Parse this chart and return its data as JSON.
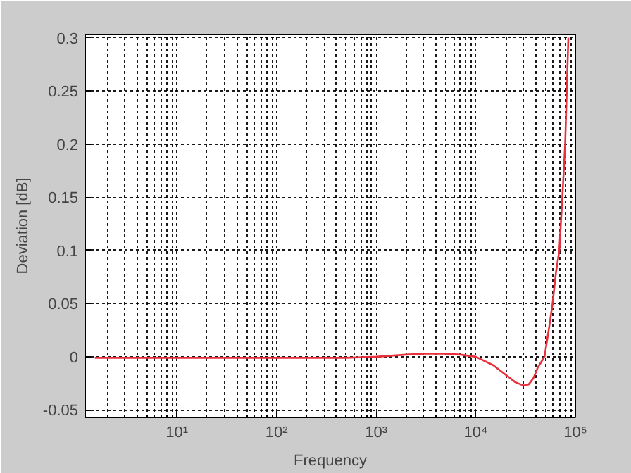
{
  "chart_data": {
    "type": "line",
    "xlabel": "Frequency",
    "ylabel": "Deviation [dB]",
    "log": "x",
    "grid": true,
    "marker": "none",
    "line_style": "solid",
    "xlim": [
      1.2,
      100000
    ],
    "ylim": [
      -0.057,
      0.303
    ],
    "xticks": [
      {
        "value": 10,
        "label": "10¹"
      },
      {
        "value": 100,
        "label": "10²"
      },
      {
        "value": 1000,
        "label": "10³"
      },
      {
        "value": 10000,
        "label": "10⁴"
      },
      {
        "value": 100000,
        "label": "10⁵"
      }
    ],
    "yticks": [
      -0.05,
      0,
      0.05,
      0.1,
      0.15,
      0.2,
      0.25,
      0.3
    ],
    "series": [
      {
        "color": "#e8303c",
        "x": [
          1.5,
          10,
          100,
          500,
          1000,
          2000,
          3000,
          5000,
          7000,
          10000,
          15000,
          20000,
          25000,
          30000,
          34000,
          38000,
          42000,
          49000,
          55000,
          59000,
          64000,
          69000,
          74000,
          79000,
          85000
        ],
        "values": [
          -0.001,
          -0.001,
          -0.001,
          -0.001,
          0,
          0.002,
          0.003,
          0.003,
          0.002,
          0,
          -0.008,
          -0.017,
          -0.024,
          -0.027,
          -0.026,
          -0.02,
          -0.01,
          0,
          0.03,
          0.05,
          0.08,
          0.1,
          0.15,
          0.2,
          0.3
        ]
      }
    ]
  }
}
